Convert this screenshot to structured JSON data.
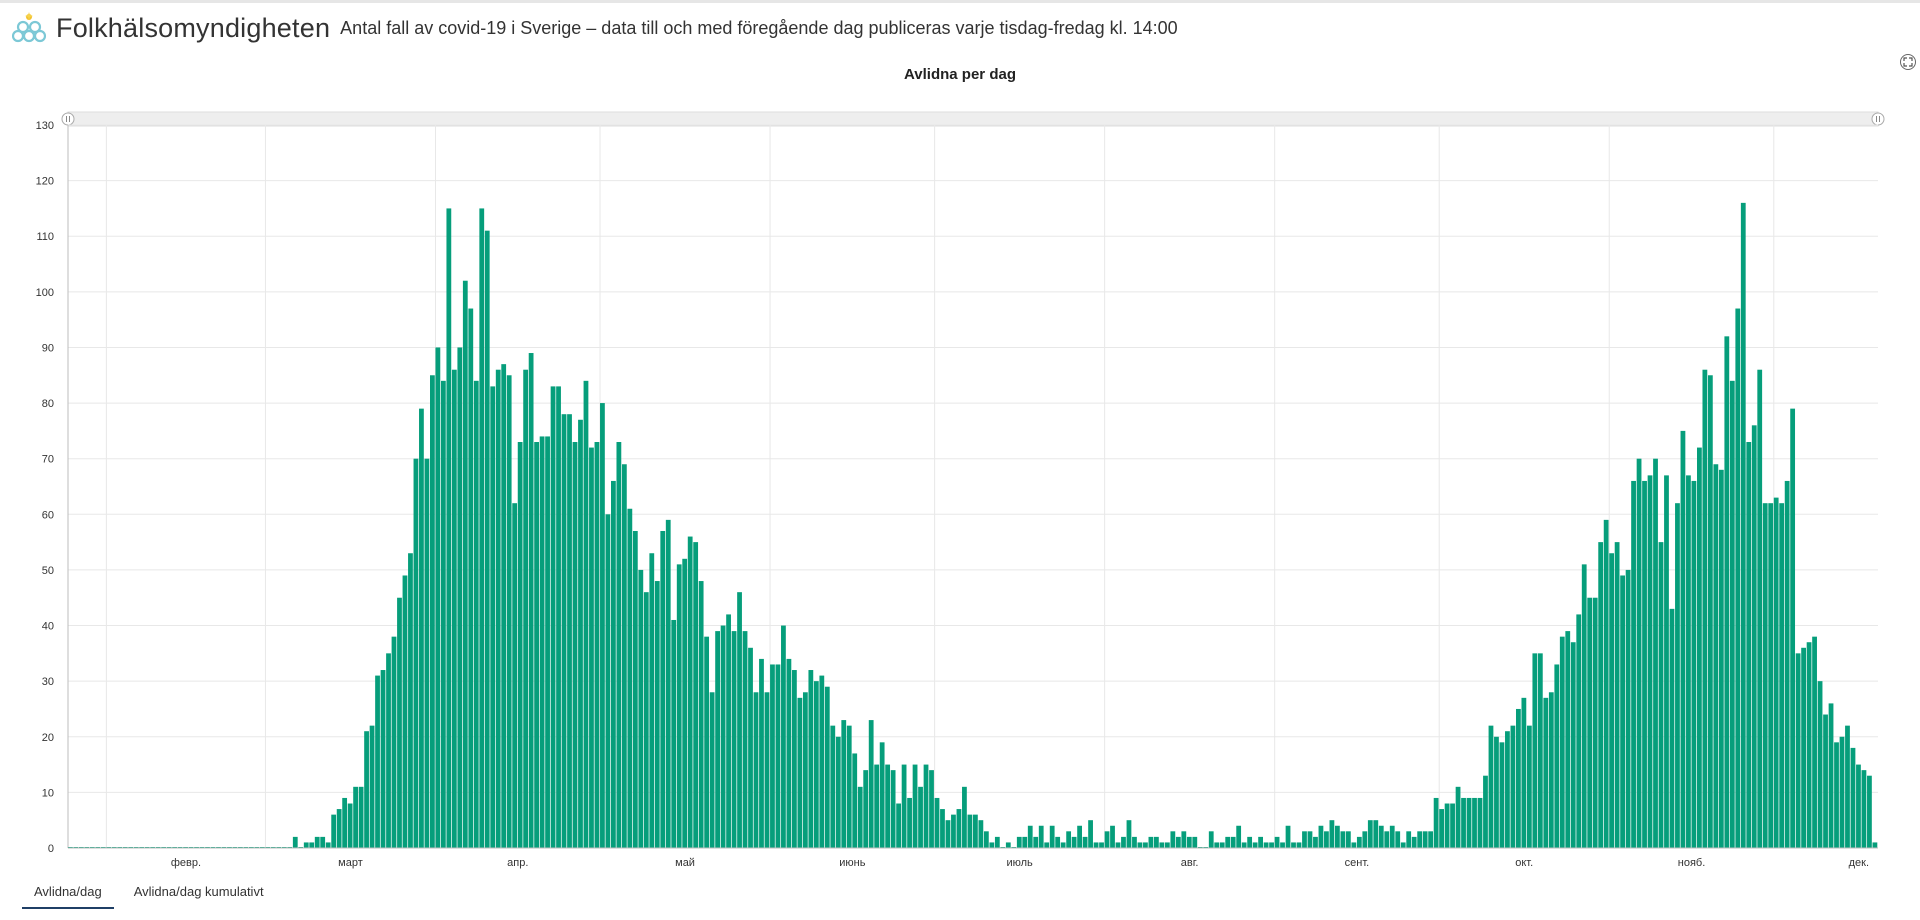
{
  "header": {
    "org_name": "Folkhälsomyndigheten",
    "subtitle": "Antal fall av covid-19 i Sverige – data till och med föregående dag publiceras varje tisdag-fredag kl. 14:00"
  },
  "icons": {
    "logo": "folkhalsomyndigheten-logo-icon",
    "fullscreen": "fullscreen-icon"
  },
  "colors": {
    "bar": "#069e7b",
    "grid": "#e8e8e8",
    "axis": "#bdbdbd",
    "text": "#333333"
  },
  "tabs": [
    {
      "label": "Avlidna/dag",
      "active": true
    },
    {
      "label": "Avlidna/dag kumulativt",
      "active": false
    }
  ],
  "chart_data": {
    "type": "bar",
    "title": "Avlidna per dag",
    "xlabel": "",
    "ylabel": "",
    "ylim": [
      0,
      130
    ],
    "yticks": [
      0,
      10,
      20,
      30,
      40,
      50,
      60,
      70,
      80,
      90,
      100,
      110,
      120,
      130
    ],
    "grid": true,
    "legend": "none",
    "x_month_labels": [
      "февр.",
      "март",
      "апр.",
      "май",
      "июнь",
      "июль",
      "авг.",
      "сент.",
      "окт.",
      "нояб.",
      "дек."
    ],
    "values": [
      0,
      0,
      0,
      0,
      0,
      0,
      0,
      0,
      0,
      0,
      0,
      0,
      0,
      0,
      0,
      0,
      0,
      0,
      0,
      0,
      0,
      0,
      0,
      0,
      0,
      0,
      0,
      0,
      0,
      0,
      0,
      0,
      0,
      0,
      0,
      0,
      0,
      0,
      0,
      0,
      0,
      2,
      0,
      1,
      1,
      2,
      2,
      1,
      6,
      7,
      9,
      8,
      11,
      11,
      21,
      22,
      31,
      32,
      35,
      38,
      45,
      49,
      53,
      70,
      79,
      70,
      85,
      90,
      84,
      115,
      86,
      90,
      102,
      97,
      84,
      115,
      111,
      83,
      86,
      87,
      85,
      62,
      73,
      86,
      89,
      73,
      74,
      74,
      83,
      83,
      78,
      78,
      73,
      77,
      84,
      72,
      73,
      80,
      60,
      66,
      73,
      69,
      61,
      57,
      50,
      46,
      53,
      48,
      57,
      59,
      41,
      51,
      52,
      56,
      55,
      48,
      38,
      28,
      39,
      40,
      42,
      39,
      46,
      39,
      36,
      28,
      34,
      28,
      33,
      33,
      40,
      34,
      32,
      27,
      28,
      32,
      30,
      31,
      29,
      22,
      20,
      23,
      22,
      17,
      11,
      14,
      23,
      15,
      19,
      15,
      14,
      8,
      15,
      9,
      15,
      11,
      15,
      14,
      9,
      7,
      5,
      6,
      7,
      11,
      6,
      6,
      5,
      3,
      1,
      2,
      0,
      1,
      0,
      2,
      2,
      4,
      2,
      4,
      1,
      4,
      2,
      1,
      3,
      2,
      4,
      2,
      5,
      1,
      1,
      3,
      4,
      1,
      2,
      5,
      2,
      1,
      1,
      2,
      2,
      1,
      1,
      3,
      2,
      3,
      2,
      2,
      0,
      0,
      3,
      1,
      1,
      2,
      2,
      4,
      1,
      2,
      1,
      2,
      1,
      1,
      2,
      1,
      4,
      1,
      1,
      3,
      3,
      2,
      4,
      3,
      5,
      4,
      3,
      3,
      1,
      2,
      3,
      5,
      5,
      4,
      3,
      4,
      3,
      1,
      3,
      2,
      3,
      3,
      3,
      9,
      7,
      8,
      8,
      11,
      9,
      9,
      9,
      9,
      13,
      22,
      20,
      19,
      21,
      22,
      25,
      27,
      22,
      35,
      35,
      27,
      28,
      33,
      38,
      39,
      37,
      42,
      51,
      45,
      45,
      55,
      59,
      53,
      55,
      49,
      50,
      66,
      70,
      66,
      67,
      70,
      55,
      67,
      43,
      62,
      75,
      67,
      66,
      72,
      86,
      85,
      69,
      68,
      92,
      84,
      97,
      116,
      73,
      76,
      86,
      62,
      62,
      63,
      62,
      66,
      79,
      35,
      36,
      37,
      38,
      30,
      24,
      26,
      19,
      20,
      22,
      18,
      15,
      14,
      13,
      1
    ]
  }
}
